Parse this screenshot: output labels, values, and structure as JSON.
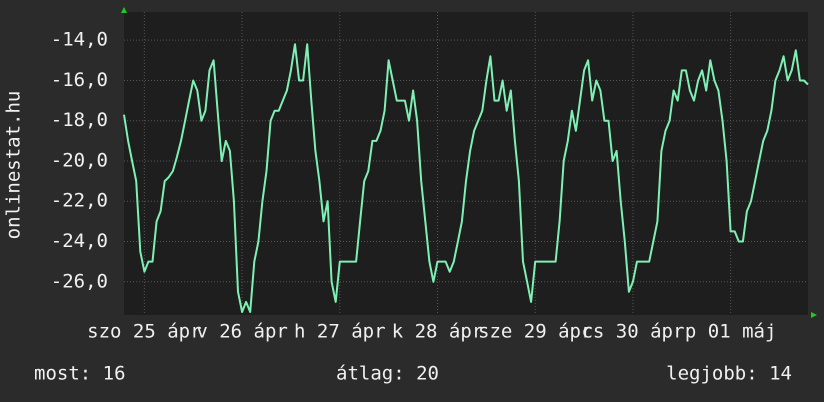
{
  "chart_data": {
    "type": "line",
    "ylabel": "onlinestat.hu",
    "color": "#7ff0b4",
    "x": [
      0,
      1,
      2,
      3,
      4,
      5,
      6,
      7,
      8,
      9,
      10,
      11,
      12,
      13,
      14,
      15,
      16,
      17,
      18,
      19,
      20,
      21,
      22,
      23,
      24,
      25,
      26,
      27,
      28,
      29,
      30,
      31,
      32,
      33,
      34,
      35,
      36,
      37,
      38,
      39,
      40,
      41,
      42,
      43,
      44,
      45,
      46,
      47,
      48,
      49,
      50,
      51,
      52,
      53,
      54,
      55,
      56,
      57,
      58,
      59,
      60,
      61,
      62,
      63,
      64,
      65,
      66,
      67,
      68,
      69,
      70,
      71,
      72,
      73,
      74,
      75,
      76,
      77,
      78,
      79,
      80,
      81,
      82,
      83,
      84,
      85,
      86,
      87,
      88,
      89,
      90,
      91,
      92,
      93,
      94,
      95,
      96,
      97,
      98,
      99,
      100,
      101,
      102,
      103,
      104,
      105,
      106,
      107,
      108,
      109,
      110,
      111,
      112,
      113,
      114,
      115,
      116,
      117,
      118,
      119,
      120,
      121,
      122,
      123,
      124,
      125,
      126,
      127,
      128,
      129,
      130,
      131,
      132,
      133,
      134,
      135,
      136,
      137,
      138,
      139,
      140,
      141,
      142,
      143,
      144,
      145,
      146,
      147,
      148,
      149,
      150,
      151,
      152,
      153,
      154,
      155,
      156,
      157,
      158,
      159,
      160,
      161,
      162,
      163,
      164,
      165,
      166,
      167,
      168
    ],
    "values": [
      -17.7,
      -19,
      -20,
      -21,
      -24.5,
      -25.5,
      -25,
      -25,
      -23,
      -22.5,
      -21,
      -20.8,
      -20.5,
      -19.8,
      -19,
      -18,
      -17,
      -16,
      -16.5,
      -18,
      -17.5,
      -15.5,
      -15,
      -17.5,
      -20,
      -19,
      -19.5,
      -22,
      -26.5,
      -27.5,
      -27,
      -27.5,
      -25,
      -24,
      -22,
      -20.5,
      -18,
      -17.5,
      -17.5,
      -17,
      -16.5,
      -15.5,
      -14.2,
      -16,
      -16,
      -14.2,
      -17,
      -19.5,
      -21,
      -23,
      -22,
      -26,
      -27,
      -25,
      -25,
      -25,
      -25,
      -25,
      -23,
      -21,
      -20.5,
      -19,
      -19,
      -18.5,
      -17.5,
      -15,
      -16,
      -17,
      -17,
      -17,
      -18,
      -16.5,
      -18,
      -21,
      -23,
      -25,
      -26,
      -25,
      -25,
      -25,
      -25.5,
      -25,
      -24,
      -23,
      -21,
      -19.5,
      -18.5,
      -18,
      -17.5,
      -16,
      -14.8,
      -17,
      -17,
      -16,
      -17.5,
      -16.5,
      -19,
      -21,
      -25,
      -26,
      -27,
      -25,
      -25,
      -25,
      -25,
      -25,
      -25,
      -23,
      -20,
      -19,
      -17.5,
      -18.5,
      -17,
      -15.5,
      -15,
      -17,
      -16,
      -16.5,
      -18,
      -18,
      -20,
      -19.5,
      -22,
      -24,
      -26.5,
      -26,
      -25,
      -25,
      -25,
      -25,
      -24,
      -23,
      -19.5,
      -18.5,
      -18,
      -16.5,
      -17,
      -15.5,
      -15.5,
      -16.5,
      -17,
      -16,
      -15.5,
      -16.5,
      -15,
      -16,
      -16.5,
      -18,
      -20,
      -23.5,
      -23.5,
      -24,
      -24,
      -22.5,
      -22,
      -21,
      -20,
      -19,
      -18.5,
      -17.5,
      -16,
      -15.5,
      -14.8,
      -16,
      -15.5,
      -14.5,
      -16,
      -16,
      -16.2
    ],
    "xlim": [
      0,
      168
    ],
    "xticks": [
      {
        "value": 5,
        "label": "szo 25 ápr"
      },
      {
        "value": 29,
        "label": "v 26 ápr"
      },
      {
        "value": 53,
        "label": "h 27 ápr"
      },
      {
        "value": 77,
        "label": "k 28 ápr"
      },
      {
        "value": 101,
        "label": "sze 29 ápr"
      },
      {
        "value": 125,
        "label": "cs 30 ápr"
      },
      {
        "value": 149,
        "label": "p 01 máj"
      }
    ],
    "ylim": [
      -27.65,
      -12.6
    ],
    "yticks": [
      {
        "value": -26,
        "label": "-26,0"
      },
      {
        "value": -24,
        "label": "-24,0"
      },
      {
        "value": -22,
        "label": "-22,0"
      },
      {
        "value": -20,
        "label": "-20,0"
      },
      {
        "value": -18,
        "label": "-18,0"
      },
      {
        "value": -16,
        "label": "-16,0"
      },
      {
        "value": -14,
        "label": "-14,0"
      }
    ],
    "grid": true,
    "footer": [
      "most: 16",
      "átlag: 20",
      "legjobb: 14"
    ]
  }
}
